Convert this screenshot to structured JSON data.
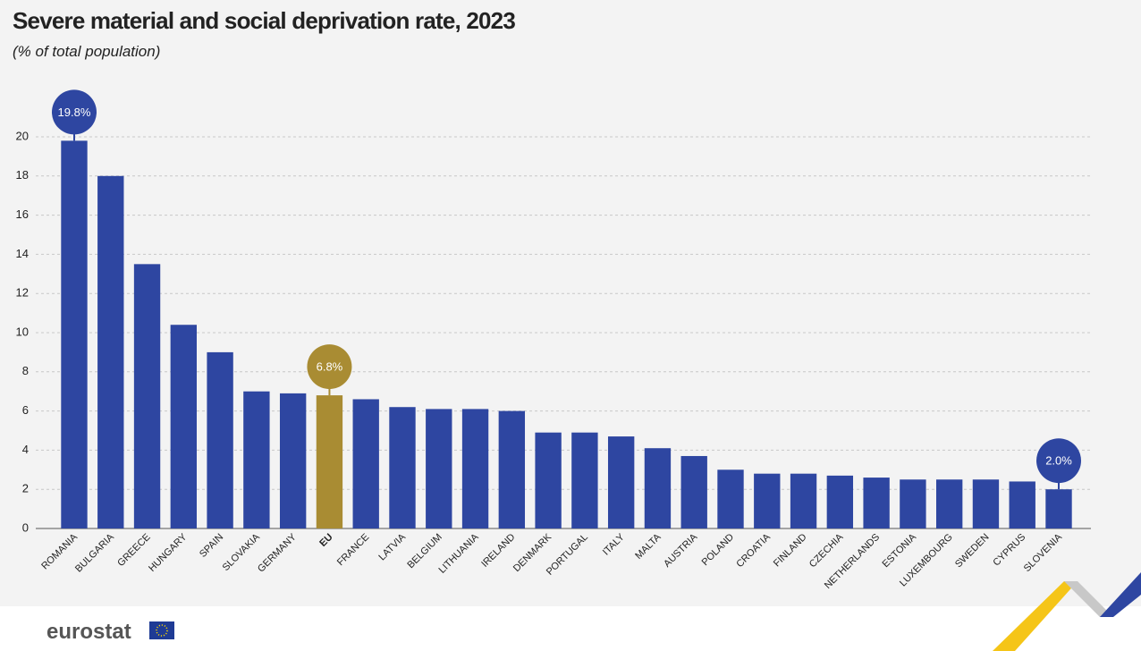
{
  "chart_data": {
    "type": "bar",
    "title": "Severe material and social deprivation rate, 2023",
    "subtitle": "(% of total population)",
    "categories": [
      "ROMANIA",
      "BULGARIA",
      "GREECE",
      "HUNGARY",
      "SPAIN",
      "SLOVAKIA",
      "GERMANY",
      "EU",
      "FRANCE",
      "LATVIA",
      "BELGIUM",
      "LITHUANIA",
      "IRELAND",
      "DENMARK",
      "PORTUGAL",
      "ITALY",
      "MALTA",
      "AUSTRIA",
      "POLAND",
      "CROATIA",
      "FINLAND",
      "CZECHIA",
      "NETHERLANDS",
      "ESTONIA",
      "LUXEMBOURG",
      "SWEDEN",
      "CYPRUS",
      "SLOVENIA"
    ],
    "values": [
      19.8,
      18.0,
      13.5,
      10.4,
      9.0,
      7.0,
      6.9,
      6.8,
      6.6,
      6.2,
      6.1,
      6.1,
      6.0,
      4.9,
      4.9,
      4.7,
      4.1,
      3.7,
      3.0,
      2.8,
      2.8,
      2.7,
      2.6,
      2.5,
      2.5,
      2.5,
      2.4,
      2.0
    ],
    "value_labels": [
      "19.8%",
      null,
      null,
      null,
      null,
      null,
      null,
      "6.8%",
      null,
      null,
      null,
      null,
      null,
      null,
      null,
      null,
      null,
      null,
      null,
      null,
      null,
      null,
      null,
      null,
      null,
      null,
      null,
      "2.0%"
    ],
    "colors": [
      "#2e46a1",
      "#2e46a1",
      "#2e46a1",
      "#2e46a1",
      "#2e46a1",
      "#2e46a1",
      "#2e46a1",
      "#a98c33",
      "#2e46a1",
      "#2e46a1",
      "#2e46a1",
      "#2e46a1",
      "#2e46a1",
      "#2e46a1",
      "#2e46a1",
      "#2e46a1",
      "#2e46a1",
      "#2e46a1",
      "#2e46a1",
      "#2e46a1",
      "#2e46a1",
      "#2e46a1",
      "#2e46a1",
      "#2e46a1",
      "#2e46a1",
      "#2e46a1",
      "#2e46a1",
      "#2e46a1"
    ],
    "ylim": [
      0,
      20
    ],
    "yticks": [
      0,
      2,
      4,
      6,
      8,
      10,
      12,
      14,
      16,
      18,
      20
    ],
    "grid": true
  },
  "logo": "eurostat"
}
